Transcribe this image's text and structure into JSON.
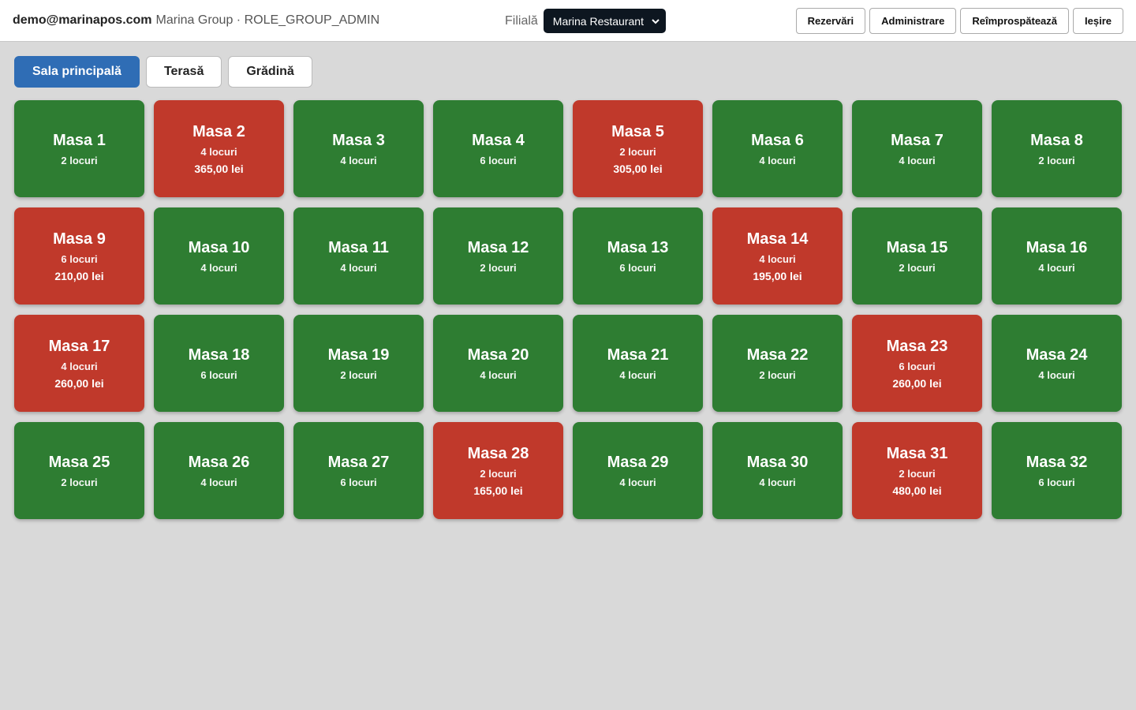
{
  "header": {
    "user": "demo@marinapos.com",
    "org": "Marina Group · ROLE_GROUP_ADMIN",
    "branch_label": "Filială",
    "branch": "Marina Restaurant",
    "buttons": [
      "Rezervări",
      "Administrare",
      "Reîmprospătează",
      "Ieșire"
    ]
  },
  "tabs": {
    "items": [
      "Sala principală",
      "Terasă",
      "Grădină"
    ],
    "active": 0,
    "active_color": "#2f6db5"
  },
  "tables": [
    {
      "name": "Masa 1",
      "seats": "2 locuri",
      "color": "#2e7d32"
    },
    {
      "name": "Masa 2",
      "seats": "4 locuri",
      "total": "365,00 lei",
      "color": "#c0392b"
    },
    {
      "name": "Masa 3",
      "seats": "4 locuri",
      "color": "#2e7d32"
    },
    {
      "name": "Masa 4",
      "seats": "6 locuri",
      "color": "#2e7d32"
    },
    {
      "name": "Masa 5",
      "seats": "2 locuri",
      "total": "305,00 lei",
      "color": "#c0392b"
    },
    {
      "name": "Masa 6",
      "seats": "4 locuri",
      "color": "#2e7d32"
    },
    {
      "name": "Masa 7",
      "seats": "4 locuri",
      "color": "#2e7d32"
    },
    {
      "name": "Masa 8",
      "seats": "2 locuri",
      "color": "#2e7d32"
    },
    {
      "name": "Masa 9",
      "seats": "6 locuri",
      "total": "210,00 lei",
      "color": "#c0392b"
    },
    {
      "name": "Masa 10",
      "seats": "4 locuri",
      "color": "#2e7d32"
    },
    {
      "name": "Masa 11",
      "seats": "4 locuri",
      "color": "#2e7d32"
    },
    {
      "name": "Masa 12",
      "seats": "2 locuri",
      "color": "#2e7d32"
    },
    {
      "name": "Masa 13",
      "seats": "6 locuri",
      "color": "#2e7d32"
    },
    {
      "name": "Masa 14",
      "seats": "4 locuri",
      "total": "195,00 lei",
      "color": "#c0392b"
    },
    {
      "name": "Masa 15",
      "seats": "2 locuri",
      "color": "#2e7d32"
    },
    {
      "name": "Masa 16",
      "seats": "4 locuri",
      "color": "#2e7d32"
    },
    {
      "name": "Masa 17",
      "seats": "4 locuri",
      "total": "260,00 lei",
      "color": "#c0392b"
    },
    {
      "name": "Masa 18",
      "seats": "6 locuri",
      "color": "#2e7d32"
    },
    {
      "name": "Masa 19",
      "seats": "2 locuri",
      "color": "#2e7d32"
    },
    {
      "name": "Masa 20",
      "seats": "4 locuri",
      "color": "#2e7d32"
    },
    {
      "name": "Masa 21",
      "seats": "4 locuri",
      "color": "#2e7d32"
    },
    {
      "name": "Masa 22",
      "seats": "2 locuri",
      "color": "#2e7d32"
    },
    {
      "name": "Masa 23",
      "seats": "6 locuri",
      "total": "260,00 lei",
      "color": "#c0392b"
    },
    {
      "name": "Masa 24",
      "seats": "4 locuri",
      "color": "#2e7d32"
    },
    {
      "name": "Masa 25",
      "seats": "2 locuri",
      "color": "#2e7d32"
    },
    {
      "name": "Masa 26",
      "seats": "4 locuri",
      "color": "#2e7d32"
    },
    {
      "name": "Masa 27",
      "seats": "6 locuri",
      "color": "#2e7d32"
    },
    {
      "name": "Masa 28",
      "seats": "2 locuri",
      "total": "165,00 lei",
      "color": "#c0392b"
    },
    {
      "name": "Masa 29",
      "seats": "4 locuri",
      "color": "#2e7d32"
    },
    {
      "name": "Masa 30",
      "seats": "4 locuri",
      "color": "#2e7d32"
    },
    {
      "name": "Masa 31",
      "seats": "2 locuri",
      "total": "480,00 lei",
      "color": "#c0392b"
    },
    {
      "name": "Masa 32",
      "seats": "6 locuri",
      "color": "#2e7d32"
    }
  ]
}
